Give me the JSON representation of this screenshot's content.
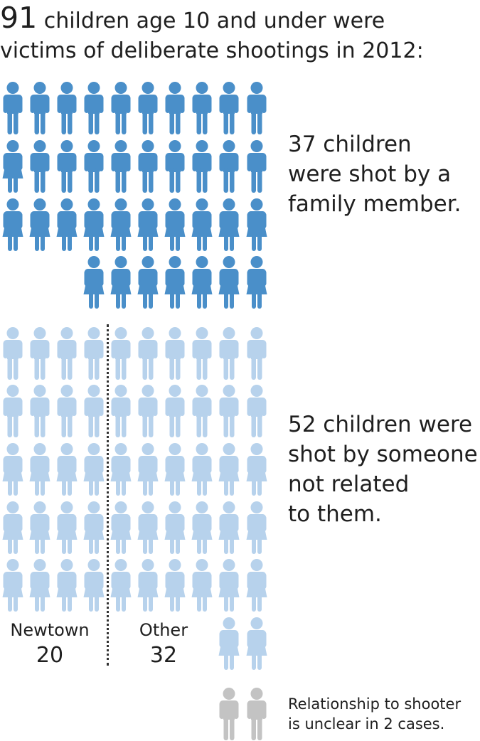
{
  "title": {
    "count": "91",
    "text_line1": "children age 10 and under were",
    "text_line2": "victims of deliberate shootings in 2012:"
  },
  "family": {
    "caption_line1": "37 children",
    "caption_line2": "were shot by a",
    "caption_line3": "family member.",
    "count": 37,
    "color": "#4a8fc9"
  },
  "unrelated": {
    "caption_line1": "52  children were",
    "caption_line2": "shot by someone",
    "caption_line3": "not related",
    "caption_line4": "to them.",
    "count": 52,
    "color": "#b7d2ec",
    "newtown_label": "Newtown",
    "newtown_value": "20",
    "other_label": "Other",
    "other_value": "32"
  },
  "unclear": {
    "count": 2,
    "color": "#c3c3c3",
    "note_line1": "Relationship to shooter",
    "note_line2": "is unclear in 2 cases."
  },
  "icons": {
    "boy": "boy-figure-icon",
    "girl": "girl-figure-icon"
  }
}
